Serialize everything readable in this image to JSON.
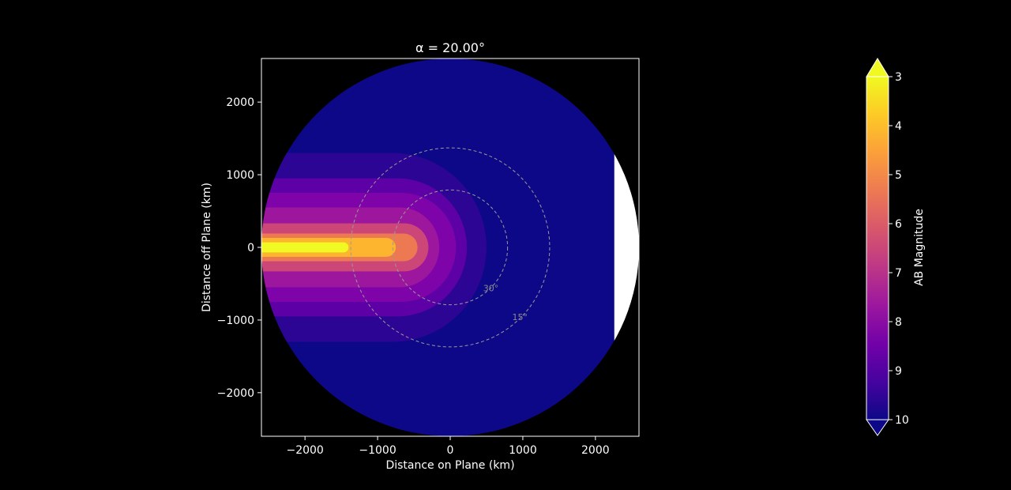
{
  "chart_data": {
    "type": "heatmap",
    "title": "α = 20.00°",
    "xlabel": "Distance on Plane (km)",
    "ylabel": "Distance off Plane (km)",
    "xlim": [
      -2600,
      2600
    ],
    "ylim": [
      -2600,
      2600
    ],
    "xticks": [
      -2000,
      -1000,
      0,
      1000,
      2000
    ],
    "yticks": [
      -2000,
      -1000,
      0,
      1000,
      2000
    ],
    "xtick_labels": [
      "−2000",
      "−1000",
      "0",
      "1000",
      "2000"
    ],
    "ytick_labels": [
      "−2000",
      "−1000",
      "0",
      "1000",
      "2000"
    ],
    "disk_radius_km": 2600,
    "shadow_edge_x_km": 2260,
    "background_color": "#0d0887",
    "shadow_color": "#ffffff",
    "contour_bands": [
      {
        "level": 9.5,
        "color": "#2c0594",
        "half_width_km": 1300,
        "tip_x_km": 500
      },
      {
        "level": 8.5,
        "color": "#5d01a6",
        "half_width_km": 950,
        "tip_x_km": 230
      },
      {
        "level": 8.0,
        "color": "#7e03a8",
        "half_width_km": 750,
        "tip_x_km": 80
      },
      {
        "level": 7.5,
        "color": "#9c179e",
        "half_width_km": 550,
        "tip_x_km": -150
      },
      {
        "level": 6.5,
        "color": "#cc4778",
        "half_width_km": 330,
        "tip_x_km": -300
      },
      {
        "level": 5.5,
        "color": "#ed7953",
        "half_width_km": 190,
        "tip_x_km": -450
      },
      {
        "level": 4.5,
        "color": "#fdb42f",
        "half_width_km": 130,
        "tip_x_km": -750
      },
      {
        "level": 3.5,
        "color": "#f0f921",
        "half_width_km": 70,
        "tip_x_km": -1400
      }
    ],
    "reference_circles": [
      {
        "label": "15°",
        "radius_km": 1370,
        "label_x_km": 960,
        "label_y_km": -960
      },
      {
        "label": "30°",
        "radius_km": 790,
        "label_x_km": 560,
        "label_y_km": -560
      }
    ],
    "colorbar": {
      "label": "AB Magnitude",
      "ticks": [
        3,
        4,
        5,
        6,
        7,
        8,
        9,
        10
      ],
      "range": [
        3,
        10
      ],
      "extend": "both",
      "inverted": true,
      "colormap": [
        "#0d0887",
        "#46039f",
        "#7201a8",
        "#9c179e",
        "#bd3786",
        "#d8576b",
        "#ed7953",
        "#fb9f3a",
        "#fdca26",
        "#f0f921"
      ]
    }
  }
}
